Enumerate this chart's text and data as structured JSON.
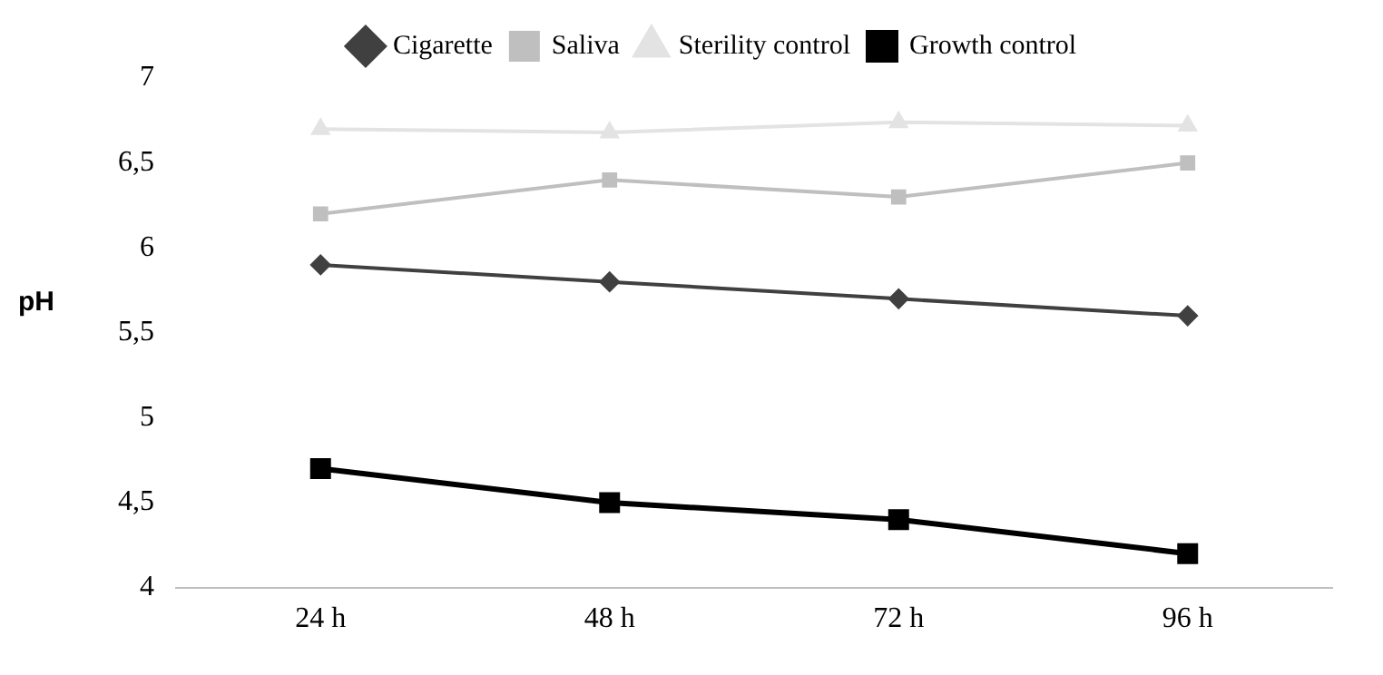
{
  "chart_data": {
    "type": "line",
    "ylabel": "pH",
    "categories": [
      "24 h",
      "48 h",
      "72 h",
      "96 h"
    ],
    "series": [
      {
        "name": "Cigarette",
        "color": "#404040",
        "marker": "diamond",
        "values": [
          5.9,
          5.8,
          5.7,
          5.6
        ]
      },
      {
        "name": "Saliva",
        "color": "#bfbfbf",
        "marker": "square",
        "values": [
          6.2,
          6.4,
          6.3,
          6.5
        ]
      },
      {
        "name": "Sterility control",
        "color": "#e3e3e3",
        "marker": "triangle",
        "values": [
          6.7,
          6.68,
          6.74,
          6.72
        ]
      },
      {
        "name": "Growth control",
        "color": "#000000",
        "marker": "square",
        "values": [
          4.7,
          4.5,
          4.4,
          4.2
        ]
      }
    ],
    "ylim": [
      4,
      7
    ],
    "yticks": [
      4,
      {
        "value": 4.5,
        "label": "4,5"
      },
      5,
      {
        "value": 5.5,
        "label": "5,5"
      },
      6,
      {
        "value": 6.5,
        "label": "6,5"
      },
      7
    ],
    "grid": false,
    "legend": "top"
  }
}
